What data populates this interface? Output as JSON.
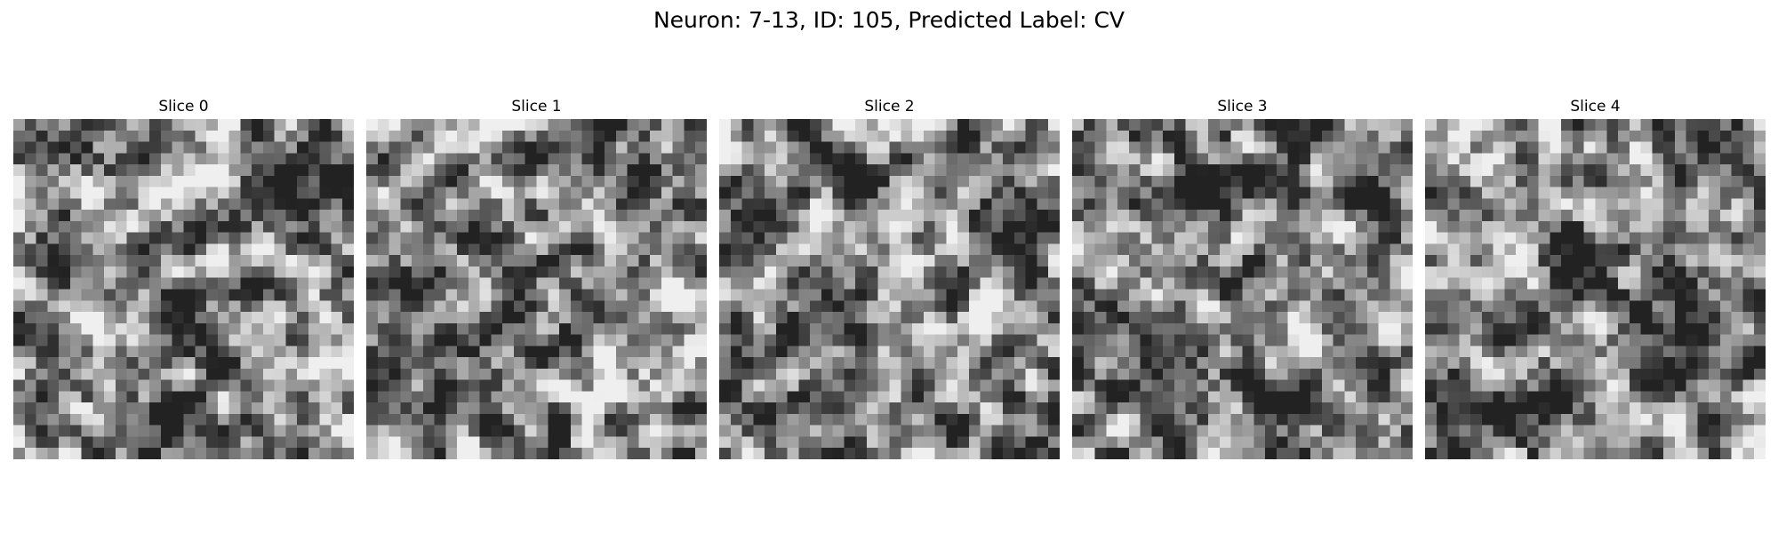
{
  "figure": {
    "title": "Neuron: 7-13, ID: 105, Predicted Label: CV",
    "colormap": "grayscale",
    "panels": [
      {
        "label": "Slice 0"
      },
      {
        "label": "Slice 1"
      },
      {
        "label": "Slice 2"
      },
      {
        "label": "Slice 3"
      },
      {
        "label": "Slice 4"
      }
    ]
  }
}
